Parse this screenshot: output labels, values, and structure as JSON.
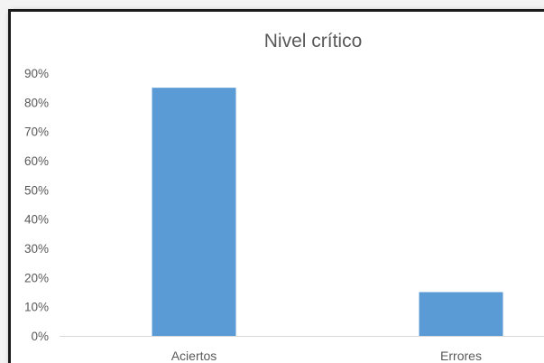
{
  "chart_data": {
    "type": "bar",
    "title": "Nivel crítico",
    "categories": [
      "Aciertos",
      "Errores"
    ],
    "values": [
      85,
      15
    ],
    "unit": "%",
    "yticks": [
      "0%",
      "10%",
      "20%",
      "30%",
      "40%",
      "50%",
      "60%",
      "70%",
      "80%",
      "90%"
    ],
    "ylim": [
      0,
      90
    ],
    "xlabel": "",
    "ylabel": "",
    "grid": false,
    "legend": "none",
    "bar_color": "#5b9bd5"
  }
}
